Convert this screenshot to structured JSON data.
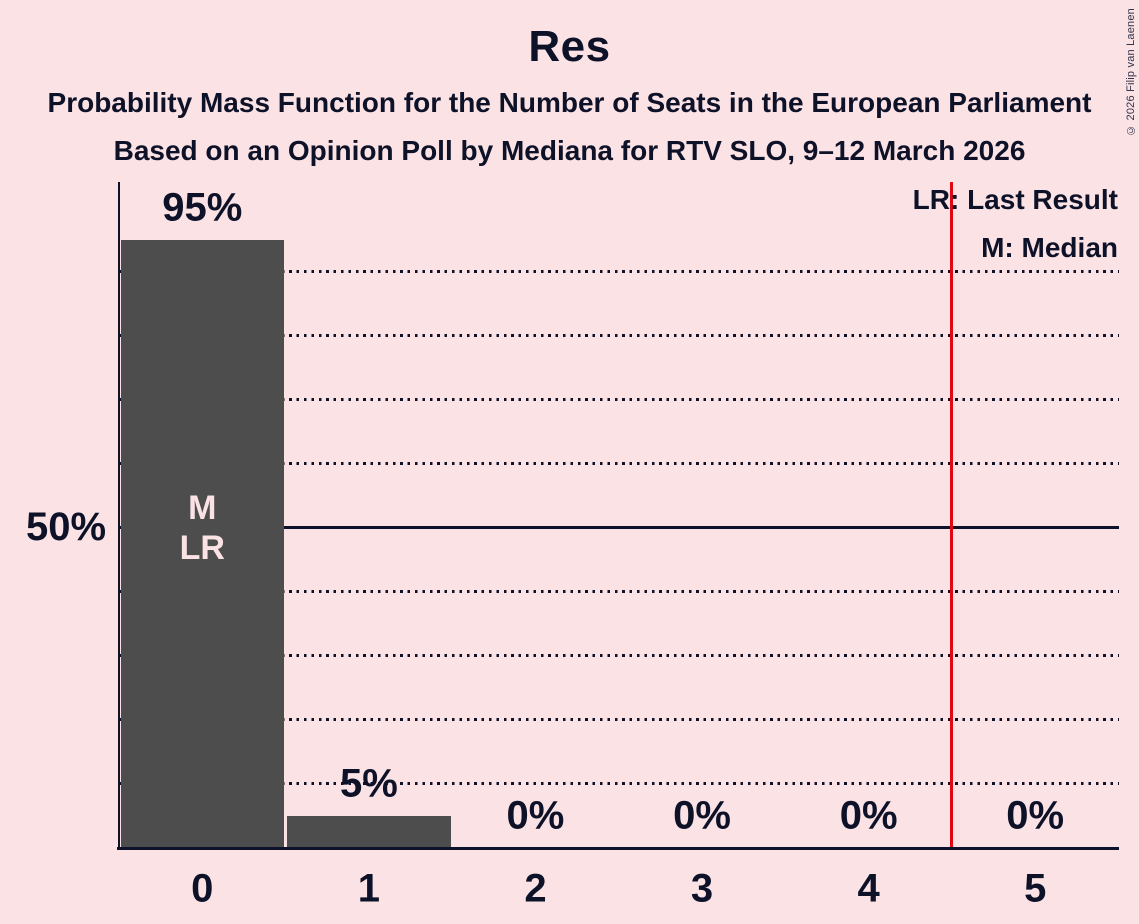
{
  "title": "Res",
  "subtitles": [
    "Probability Mass Function for the Number of Seats in the European Parliament",
    "Based on an Opinion Poll by Mediana for RTV SLO, 9–12 March 2026"
  ],
  "copyright": "© 2026 Filip van Laenen",
  "legend": {
    "last_result": "LR: Last Result",
    "median": "M: Median"
  },
  "chart_data": {
    "type": "bar",
    "title": "Res",
    "categories": [
      "0",
      "1",
      "2",
      "3",
      "4",
      "5"
    ],
    "values": [
      95,
      5,
      0,
      0,
      0,
      0
    ],
    "value_labels": [
      "95%",
      "5%",
      "0%",
      "0%",
      "0%",
      "0%"
    ],
    "y_tick": {
      "pct": 50,
      "label": "50%"
    },
    "gridlines_pct": [
      10,
      20,
      30,
      40,
      60,
      70,
      80,
      90
    ],
    "solid_gridline_pct": 50,
    "ylim": [
      0,
      104
    ],
    "grid": "dotted-horizontal",
    "legend_position": "top-right",
    "median_marker": "M",
    "last_result_marker": "LR",
    "annotation": {
      "bar_index": 0,
      "lines": [
        "M",
        "LR"
      ]
    },
    "red_line_at": 4.5,
    "colors": {
      "background": "#FBE2E4",
      "ink": "#0E1228",
      "bar": "#4D4D4D",
      "bar_text": "#FBE2E4",
      "red_line": "#E30613"
    }
  }
}
